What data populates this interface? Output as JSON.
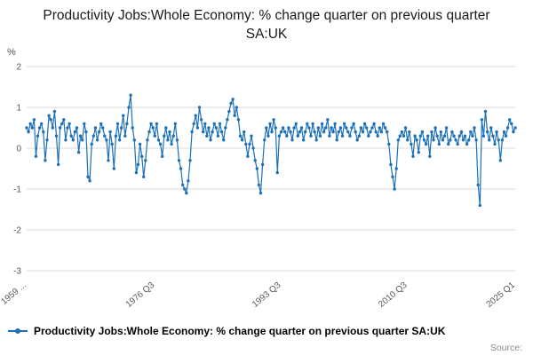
{
  "title": "Productivity Jobs:Whole Economy: % change quarter on previous quarter SA:UK",
  "source_label": "Source:",
  "legend": {
    "label": "Productivity Jobs:Whole Economy: % change quarter on previous quarter SA:UK"
  },
  "colors": {
    "series": "#1d70b8",
    "grid": "#d9d9d9",
    "tick_text": "#595959",
    "title_text": "#1a1a1a"
  },
  "chart_data": {
    "type": "line",
    "title": "Productivity Jobs:Whole Economy: % change quarter on previous quarter SA:UK",
    "xlabel": "",
    "ylabel": "%",
    "ylim": [
      -3,
      2
    ],
    "yticks": [
      2,
      1,
      0,
      -1,
      -2,
      -3
    ],
    "grid": true,
    "marker": "circle",
    "legend_position": "bottom",
    "frequency": "quarterly",
    "x_start": "1959 Q2",
    "x_end": "2025 Q1",
    "xticks": [
      {
        "label": "1959 ...",
        "index": 0
      },
      {
        "label": "1976 Q3",
        "index": 69
      },
      {
        "label": "1993 Q3",
        "index": 137
      },
      {
        "label": "2010 Q3",
        "index": 205
      },
      {
        "label": "2025 Q1",
        "index": 263
      }
    ],
    "color": "#1d70b8",
    "series": [
      {
        "name": "Productivity Jobs:Whole Economy: % change quarter on previous quarter SA:UK",
        "values": [
          0.5,
          0.4,
          0.6,
          0.5,
          0.7,
          -0.2,
          0.3,
          0.5,
          0.6,
          0.4,
          -0.3,
          0.2,
          0.8,
          0.7,
          0.5,
          0.9,
          0.3,
          -0.4,
          0.5,
          0.6,
          0.7,
          0.2,
          0.5,
          0.6,
          0.3,
          0.2,
          0.4,
          0.5,
          -0.1,
          0.3,
          0.2,
          0.6,
          0.4,
          -0.7,
          -0.8,
          0.1,
          0.3,
          0.5,
          0.2,
          0.4,
          0.6,
          0.5,
          0.3,
          0.2,
          -0.3,
          0.4,
          0.1,
          -0.5,
          0.3,
          0.6,
          0.2,
          0.5,
          0.8,
          0.3,
          0.6,
          1.0,
          1.3,
          0.5,
          0.2,
          -0.6,
          -0.4,
          0.1,
          -0.2,
          -0.7,
          -0.3,
          0.2,
          0.4,
          0.6,
          0.5,
          0.3,
          0.6,
          0.2,
          0.1,
          -0.2,
          0.3,
          0.5,
          0.2,
          0.4,
          0.1,
          0.3,
          0.6,
          0.2,
          -0.3,
          -0.5,
          -0.9,
          -1.0,
          -1.1,
          -0.8,
          -0.3,
          0.4,
          0.6,
          0.8,
          0.5,
          1.0,
          0.7,
          0.4,
          0.6,
          0.3,
          0.5,
          0.2,
          0.4,
          0.6,
          0.5,
          0.3,
          0.6,
          0.4,
          0.2,
          0.5,
          0.7,
          0.9,
          1.1,
          1.2,
          0.8,
          1.0,
          0.7,
          0.3,
          0.2,
          0.4,
          0.1,
          -0.2,
          0.1,
          0.3,
          0.0,
          -0.3,
          -0.5,
          -0.9,
          -1.1,
          -0.4,
          0.2,
          0.5,
          0.3,
          0.6,
          0.4,
          0.7,
          0.5,
          -0.6,
          0.3,
          0.4,
          0.5,
          0.4,
          0.3,
          0.5,
          0.4,
          0.2,
          0.5,
          0.6,
          0.3,
          0.4,
          0.5,
          0.2,
          0.4,
          0.6,
          0.5,
          0.3,
          0.6,
          0.4,
          0.2,
          0.5,
          0.3,
          0.6,
          0.4,
          0.5,
          0.7,
          0.3,
          0.5,
          0.4,
          0.6,
          0.2,
          0.4,
          0.5,
          0.3,
          0.6,
          0.5,
          0.4,
          0.3,
          0.5,
          0.6,
          0.4,
          0.2,
          0.3,
          0.5,
          0.4,
          0.6,
          0.5,
          0.3,
          0.4,
          0.5,
          0.6,
          0.4,
          0.3,
          0.5,
          0.4,
          0.6,
          0.5,
          0.4,
          0.1,
          -0.4,
          -0.7,
          -1.0,
          -0.5,
          0.2,
          0.3,
          0.4,
          0.3,
          0.5,
          0.2,
          0.4,
          0.1,
          -0.2,
          0.3,
          0.2,
          -0.1,
          0.3,
          0.4,
          0.2,
          0.1,
          0.3,
          -0.2,
          0.4,
          0.2,
          0.5,
          0.3,
          0.1,
          0.4,
          0.2,
          0.3,
          0.5,
          0.1,
          0.2,
          0.4,
          0.3,
          0.2,
          0.1,
          0.3,
          0.4,
          0.2,
          0.3,
          0.1,
          0.2,
          0.4,
          0.3,
          0.5,
          0.2,
          -0.9,
          -1.4,
          0.7,
          0.3,
          0.9,
          0.4,
          0.2,
          0.5,
          0.3,
          0.1,
          0.4,
          0.2,
          -0.3,
          0.2,
          0.4,
          0.3,
          0.5,
          0.7,
          0.6,
          0.4,
          0.5
        ]
      }
    ]
  }
}
